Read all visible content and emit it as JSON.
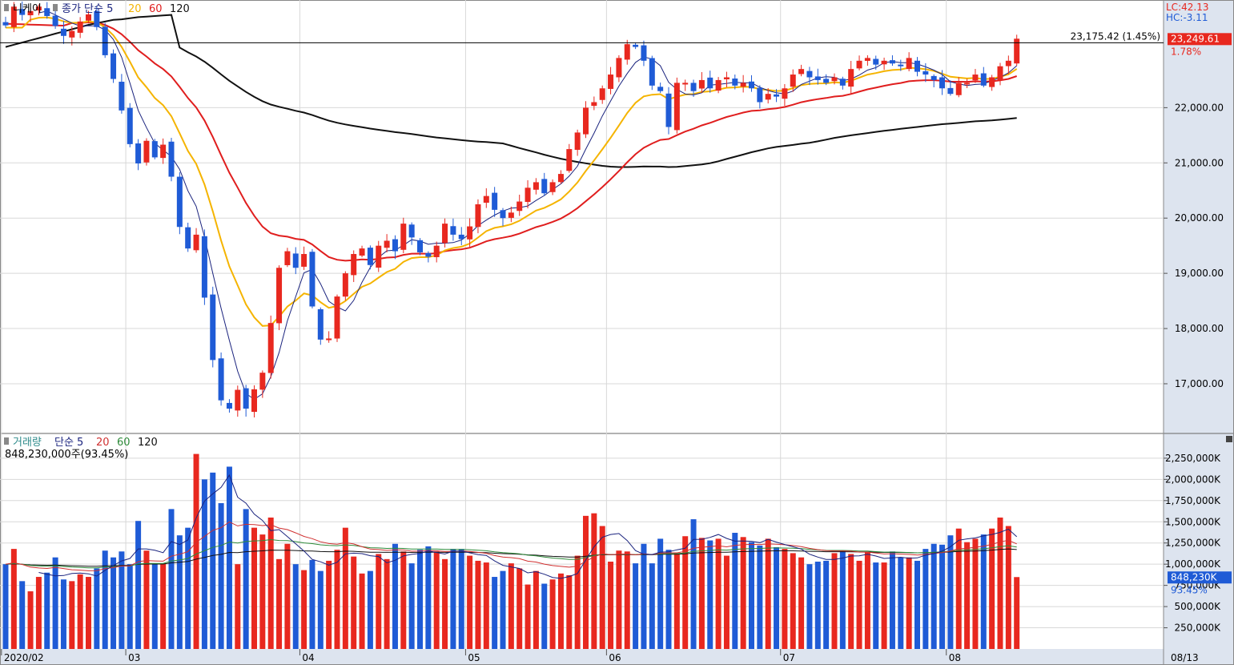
{
  "header": {
    "symbol": "니케이",
    "price_ma_label": "종가 단순 5",
    "ma_periods": [
      "20",
      "60",
      "120"
    ],
    "volume_label": "거래량",
    "volume_ma_label": "단순 5",
    "volume_ma_periods": [
      "20",
      "60",
      "120"
    ],
    "volume_readout": "848,230,000주(93.45%)"
  },
  "colors": {
    "up": "#e8281f",
    "down": "#1f5bd6",
    "ma5": "#1a237e",
    "ma20": "#f5b400",
    "ma60": "#e01e1e",
    "ma120": "#111111",
    "vol_ma20": "#d03030",
    "vol_ma60": "#2e8b3a",
    "vol_ma120": "#111111",
    "axis_bg": "#dde4ef",
    "grid": "#d8d8d8"
  },
  "chart_data": {
    "type": "candlestick",
    "price_axis": {
      "ticks": [
        17000,
        18000,
        19000,
        20000,
        21000,
        22000
      ],
      "tick_labels": [
        "17,000.00",
        "18,000.00",
        "19,000.00",
        "20,000.00",
        "21,000.00",
        "22,000.00"
      ],
      "ylim": [
        16100,
        23950
      ]
    },
    "volume_axis": {
      "ticks": [
        250000000,
        500000000,
        750000000,
        1000000000,
        1250000000,
        1500000000,
        1750000000,
        2000000000,
        2250000000
      ],
      "tick_labels": [
        "250,000K",
        "500,000K",
        "750,000K",
        "1,000,000K",
        "1,250,000K",
        "1,500,000K",
        "1,750,000K",
        "2,000,000K",
        "2,250,000K"
      ],
      "ylim": [
        0,
        2400000000
      ]
    },
    "x_labels": [
      {
        "index": 0,
        "label": "2020/02"
      },
      {
        "index": 15,
        "label": "03"
      },
      {
        "index": 36,
        "label": "04"
      },
      {
        "index": 56,
        "label": "05"
      },
      {
        "index": 73,
        "label": "06"
      },
      {
        "index": 94,
        "label": "07"
      },
      {
        "index": 114,
        "label": "08"
      }
    ],
    "axis_end_label": "08/13",
    "lc_label": "LC:42.13",
    "hc_label": "HC:-3.11",
    "last_price_label": "23,249.61",
    "last_change_label": "1.78%",
    "reference_line": {
      "value": 23175.42,
      "label": "23,175.42 (1.45%)"
    },
    "volume_last_label": "848,230K",
    "volume_last_pct": "93.45%",
    "closes": [
      23490,
      23830,
      23680,
      23750,
      23830,
      23660,
      23480,
      23300,
      23390,
      23560,
      23690,
      23460,
      22950,
      22520,
      21950,
      21340,
      20990,
      21400,
      21100,
      21330,
      20750,
      19840,
      19450,
      19700,
      18560,
      17430,
      16700,
      16550,
      16890,
      16550,
      16900,
      17200,
      18100,
      19100,
      19400,
      19100,
      19350,
      18400,
      17800,
      17820,
      18580,
      19000,
      19350,
      19450,
      19150,
      19500,
      19590,
      19400,
      19900,
      19650,
      19380,
      19300,
      19500,
      19900,
      19700,
      19620,
      19850,
      20250,
      20400,
      20150,
      20000,
      20100,
      20300,
      20550,
      20650,
      20450,
      20650,
      20800,
      21250,
      21550,
      22000,
      22100,
      22350,
      22600,
      22900,
      23150,
      23100,
      22850,
      22400,
      22300,
      21650,
      22450,
      22450,
      22300,
      22500,
      22350,
      22500,
      22550,
      22400,
      22450,
      22350,
      22100,
      22250,
      22200,
      22350,
      22600,
      22700,
      22550,
      22500,
      22450,
      22550,
      22400,
      22700,
      22850,
      22900,
      22780,
      22850,
      22800,
      22750,
      22900,
      22650,
      22600,
      22500,
      22350,
      22250,
      22450,
      22450,
      22600,
      22400,
      22550,
      22750,
      22850,
      23249
    ],
    "volumes": [
      1000,
      1180,
      800,
      680,
      850,
      900,
      1080,
      820,
      800,
      880,
      850,
      950,
      1160,
      1080,
      1150,
      1000,
      1510,
      1160,
      1000,
      1010,
      1650,
      1340,
      1430,
      2300,
      2000,
      2080,
      1720,
      2150,
      1000,
      1650,
      1430,
      1350,
      1550,
      1060,
      1240,
      1000,
      930,
      1050,
      920,
      1040,
      1170,
      1430,
      1090,
      890,
      920,
      1120,
      1060,
      1240,
      1150,
      1010,
      1170,
      1210,
      1150,
      1060,
      1180,
      1180,
      1100,
      1040,
      1020,
      850,
      920,
      1010,
      950,
      760,
      920,
      770,
      820,
      890,
      870,
      1100,
      1570,
      1600,
      1450,
      1030,
      1160,
      1150,
      1010,
      1240,
      1010,
      1300,
      1170,
      1130,
      1330,
      1530,
      1310,
      1280,
      1300,
      1100,
      1370,
      1320,
      1260,
      1220,
      1300,
      1200,
      1180,
      1130,
      1080,
      1000,
      1030,
      1040,
      1130,
      1160,
      1120,
      1040,
      1140,
      1020,
      1020,
      1150,
      1080,
      1080,
      1040,
      1180,
      1240,
      1230,
      1340,
      1420,
      1260,
      1300,
      1350,
      1420,
      1550,
      1450,
      848
    ],
    "volume_unit_scale": 1000000,
    "ma5_label": "5",
    "ma120_prefix": [
      23100,
      23140,
      23180,
      23220,
      23260,
      23300,
      23340,
      23380,
      23420,
      23460,
      23500,
      23530,
      23560,
      23590,
      23600,
      23620,
      23640,
      23650,
      23660,
      23670,
      23680
    ]
  }
}
